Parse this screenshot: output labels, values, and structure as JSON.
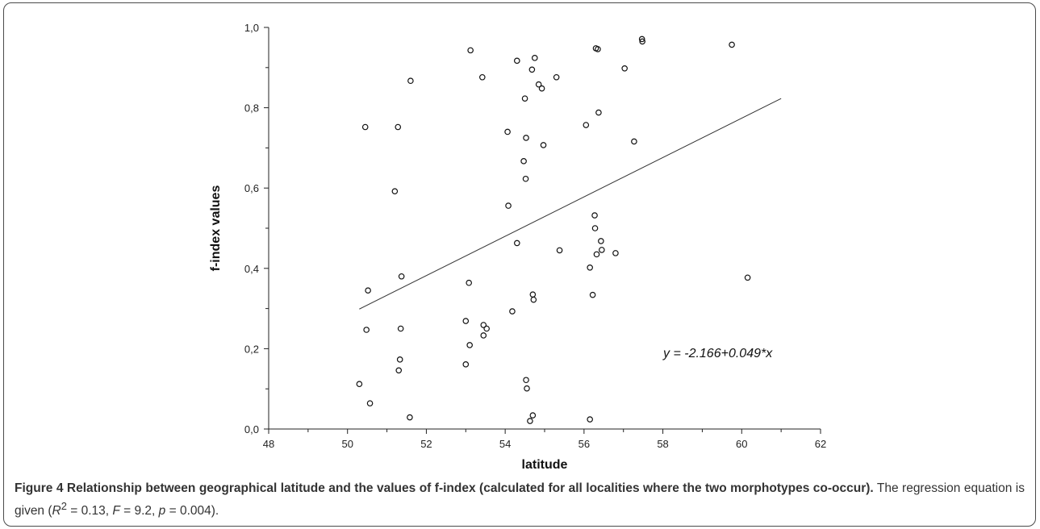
{
  "chart_data": {
    "type": "scatter",
    "xlabel": "latitude",
    "ylabel": "f-index values",
    "xlim": [
      48,
      62
    ],
    "ylim": [
      0,
      1
    ],
    "x_ticks": [
      "48",
      "50",
      "52",
      "54",
      "56",
      "58",
      "60",
      "62"
    ],
    "y_ticks": [
      "0,0",
      "0,2",
      "0,4",
      "0,6",
      "0,8",
      "1,0"
    ],
    "points": [
      {
        "x": 50.3,
        "y": 0.112
      },
      {
        "x": 50.45,
        "y": 0.752
      },
      {
        "x": 50.48,
        "y": 0.247
      },
      {
        "x": 50.52,
        "y": 0.345
      },
      {
        "x": 50.57,
        "y": 0.064
      },
      {
        "x": 51.2,
        "y": 0.592
      },
      {
        "x": 51.28,
        "y": 0.752
      },
      {
        "x": 51.3,
        "y": 0.146
      },
      {
        "x": 51.33,
        "y": 0.173
      },
      {
        "x": 51.35,
        "y": 0.25
      },
      {
        "x": 51.37,
        "y": 0.38
      },
      {
        "x": 51.58,
        "y": 0.029
      },
      {
        "x": 51.6,
        "y": 0.867
      },
      {
        "x": 53.0,
        "y": 0.269
      },
      {
        "x": 53.0,
        "y": 0.161
      },
      {
        "x": 53.08,
        "y": 0.364
      },
      {
        "x": 53.1,
        "y": 0.209
      },
      {
        "x": 53.12,
        "y": 0.943
      },
      {
        "x": 53.42,
        "y": 0.876
      },
      {
        "x": 53.45,
        "y": 0.259
      },
      {
        "x": 53.45,
        "y": 0.233
      },
      {
        "x": 53.53,
        "y": 0.25
      },
      {
        "x": 54.06,
        "y": 0.74
      },
      {
        "x": 54.08,
        "y": 0.556
      },
      {
        "x": 54.18,
        "y": 0.293
      },
      {
        "x": 54.3,
        "y": 0.917
      },
      {
        "x": 54.3,
        "y": 0.463
      },
      {
        "x": 54.47,
        "y": 0.667
      },
      {
        "x": 54.5,
        "y": 0.823
      },
      {
        "x": 54.52,
        "y": 0.623
      },
      {
        "x": 54.53,
        "y": 0.725
      },
      {
        "x": 54.53,
        "y": 0.122
      },
      {
        "x": 54.55,
        "y": 0.101
      },
      {
        "x": 54.63,
        "y": 0.02
      },
      {
        "x": 54.68,
        "y": 0.895
      },
      {
        "x": 54.7,
        "y": 0.034
      },
      {
        "x": 54.7,
        "y": 0.335
      },
      {
        "x": 54.72,
        "y": 0.322
      },
      {
        "x": 54.75,
        "y": 0.924
      },
      {
        "x": 54.85,
        "y": 0.858
      },
      {
        "x": 54.93,
        "y": 0.848
      },
      {
        "x": 54.97,
        "y": 0.707
      },
      {
        "x": 55.3,
        "y": 0.876
      },
      {
        "x": 55.38,
        "y": 0.445
      },
      {
        "x": 56.05,
        "y": 0.757
      },
      {
        "x": 56.15,
        "y": 0.402
      },
      {
        "x": 56.15,
        "y": 0.024
      },
      {
        "x": 56.22,
        "y": 0.334
      },
      {
        "x": 56.27,
        "y": 0.532
      },
      {
        "x": 56.28,
        "y": 0.5
      },
      {
        "x": 56.3,
        "y": 0.948
      },
      {
        "x": 56.32,
        "y": 0.435
      },
      {
        "x": 56.35,
        "y": 0.946
      },
      {
        "x": 56.37,
        "y": 0.788
      },
      {
        "x": 56.43,
        "y": 0.468
      },
      {
        "x": 56.45,
        "y": 0.446
      },
      {
        "x": 56.8,
        "y": 0.438
      },
      {
        "x": 57.03,
        "y": 0.898
      },
      {
        "x": 57.27,
        "y": 0.716
      },
      {
        "x": 57.47,
        "y": 0.971
      },
      {
        "x": 57.48,
        "y": 0.965
      },
      {
        "x": 59.75,
        "y": 0.957
      },
      {
        "x": 60.15,
        "y": 0.377
      }
    ],
    "regression": {
      "intercept": -2.166,
      "slope": 0.049,
      "x_range": [
        50.3,
        61.0
      ]
    },
    "equation_label": "y = -2.166+0.049*x"
  },
  "caption": {
    "figure_label": "Figure 4",
    "title": "Relationship between geographical latitude and the values of f-index (calculated for all localities where the two morphotypes co-occur).",
    "text_before": "The regression equation is given (",
    "r_symbol": "R",
    "r_exp": "2",
    "r_value": " = 0.13, ",
    "f_symbol": "F",
    "f_value": " = 9.2, ",
    "p_symbol": "p",
    "p_value": " = 0.004)."
  }
}
